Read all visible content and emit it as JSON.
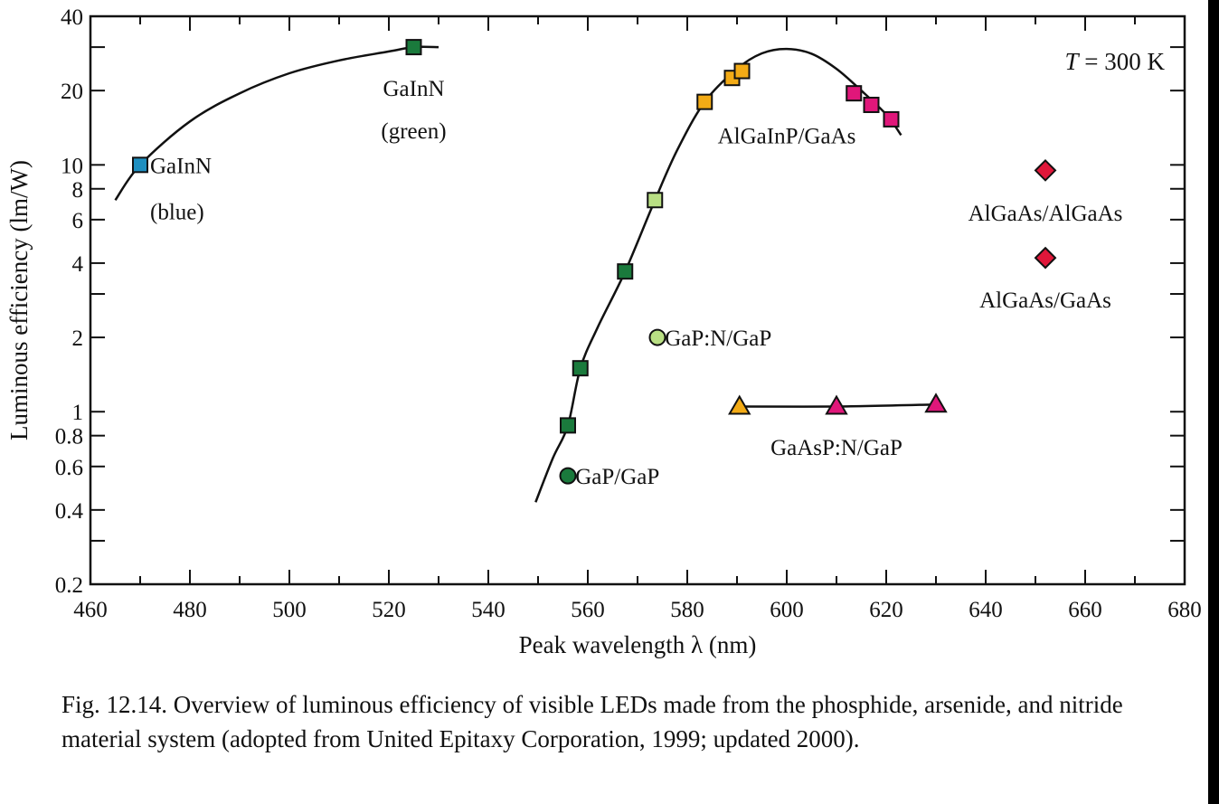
{
  "caption": "Fig. 12.14. Overview of luminous efficiency of visible LEDs made from the phosphide, arsenide, and nitride material system (adopted from United Epitaxy Corporation, 1999; updated 2000).",
  "chart_data": {
    "type": "scatter",
    "xlabel": "Peak wavelength λ (nm)",
    "ylabel": "Luminous efficiency (lm/W)",
    "annotation": "T = 300 K",
    "x_scale": "linear",
    "y_scale": "log",
    "xlim": [
      460,
      680
    ],
    "ylim": [
      0.2,
      40
    ],
    "x_ticks": [
      "460",
      "480",
      "500",
      "520",
      "540",
      "560",
      "580",
      "600",
      "620",
      "640",
      "660",
      "680"
    ],
    "y_ticks": [
      {
        "v": 0.2,
        "label": "0.2"
      },
      {
        "v": 0.4,
        "label": "0.4"
      },
      {
        "v": 0.6,
        "label": "0.6"
      },
      {
        "v": 0.8,
        "label": "0.8"
      },
      {
        "v": 1,
        "label": "1"
      },
      {
        "v": 2,
        "label": "2"
      },
      {
        "v": 4,
        "label": "4"
      },
      {
        "v": 6,
        "label": "6"
      },
      {
        "v": 8,
        "label": "8"
      },
      {
        "v": 10,
        "label": "10"
      },
      {
        "v": 20,
        "label": "20"
      },
      {
        "v": 40,
        "label": "40"
      }
    ],
    "y_minor_ticks": [
      0.3,
      3,
      30
    ],
    "grid": false,
    "points": [
      {
        "x": 470,
        "y": 10,
        "marker": "square",
        "color": "#1f8fc0"
      },
      {
        "x": 525,
        "y": 30,
        "marker": "square",
        "color": "#1a7a3c"
      },
      {
        "x": 556,
        "y": 0.88,
        "marker": "square",
        "color": "#1a7a3c"
      },
      {
        "x": 558.5,
        "y": 1.5,
        "marker": "square",
        "color": "#1a7a3c"
      },
      {
        "x": 567.5,
        "y": 3.7,
        "marker": "square",
        "color": "#1a7a3c"
      },
      {
        "x": 573.5,
        "y": 7.2,
        "marker": "square",
        "color": "#b9df84"
      },
      {
        "x": 583.5,
        "y": 18,
        "marker": "square",
        "color": "#f3ab16"
      },
      {
        "x": 589,
        "y": 22.5,
        "marker": "square",
        "color": "#f3ab16"
      },
      {
        "x": 591,
        "y": 24,
        "marker": "square",
        "color": "#f3ab16"
      },
      {
        "x": 613.5,
        "y": 19.5,
        "marker": "square",
        "color": "#e0177a"
      },
      {
        "x": 617,
        "y": 17.5,
        "marker": "square",
        "color": "#e0177a"
      },
      {
        "x": 621,
        "y": 15.3,
        "marker": "square",
        "color": "#e0177a"
      },
      {
        "x": 556,
        "y": 0.55,
        "marker": "circle",
        "color": "#1a7a3c"
      },
      {
        "x": 574,
        "y": 2,
        "marker": "circle",
        "color": "#b9df84"
      },
      {
        "x": 590.5,
        "y": 1.05,
        "marker": "triangle",
        "color": "#f3ab16"
      },
      {
        "x": 610,
        "y": 1.05,
        "marker": "triangle",
        "color": "#e0177a"
      },
      {
        "x": 630,
        "y": 1.07,
        "marker": "triangle",
        "color": "#e0177a"
      },
      {
        "x": 652,
        "y": 9.5,
        "marker": "diamond",
        "color": "#e0173a"
      },
      {
        "x": 652,
        "y": 4.2,
        "marker": "diamond",
        "color": "#e0173a"
      }
    ],
    "curves": [
      {
        "name": "",
        "points": [
          [
            465,
            7.2
          ],
          [
            470,
            10
          ],
          [
            480,
            15
          ],
          [
            490,
            19.5
          ],
          [
            500,
            23.5
          ],
          [
            510,
            26.5
          ],
          [
            520,
            28.8
          ],
          [
            525,
            30
          ],
          [
            530,
            30
          ]
        ]
      },
      {
        "name": "",
        "points": [
          [
            549.5,
            0.43
          ],
          [
            553,
            0.65
          ],
          [
            556,
            0.88
          ],
          [
            558.5,
            1.5
          ],
          [
            562,
            2.2
          ],
          [
            567.5,
            3.7
          ],
          [
            573.5,
            7.2
          ],
          [
            578,
            11.5
          ],
          [
            583.5,
            18
          ],
          [
            590,
            24.5
          ],
          [
            595,
            28.3
          ],
          [
            600,
            29.5
          ],
          [
            605,
            28.2
          ],
          [
            610,
            24.5
          ],
          [
            615,
            20
          ],
          [
            620,
            16
          ],
          [
            623,
            13.2
          ]
        ]
      },
      {
        "name": "",
        "points": [
          [
            590.5,
            1.05
          ],
          [
            610,
            1.05
          ],
          [
            630,
            1.07
          ]
        ]
      }
    ],
    "labels": [
      {
        "text": "GaInN",
        "x": 472,
        "y": 10,
        "anchor": "start"
      },
      {
        "text": "(blue)",
        "x": 472,
        "y": 6.5,
        "anchor": "start"
      },
      {
        "text": "GaInN",
        "x": 525,
        "y": 20.5,
        "anchor": "middle"
      },
      {
        "text": "(green)",
        "x": 525,
        "y": 13.8,
        "anchor": "middle"
      },
      {
        "text": "AlGaInP/GaAs",
        "x": 600,
        "y": 13.2,
        "anchor": "middle"
      },
      {
        "text": "AlGaAs/AlGaAs",
        "x": 652,
        "y": 6.4,
        "anchor": "middle"
      },
      {
        "text": "AlGaAs/GaAs",
        "x": 652,
        "y": 2.85,
        "anchor": "middle"
      },
      {
        "text": "GaP:N/GaP",
        "x": 575.5,
        "y": 2,
        "anchor": "start"
      },
      {
        "text": "GaAsP:N/GaP",
        "x": 610,
        "y": 0.72,
        "anchor": "middle"
      },
      {
        "text": "GaP/GaP",
        "x": 557.5,
        "y": 0.55,
        "anchor": "start"
      }
    ]
  }
}
